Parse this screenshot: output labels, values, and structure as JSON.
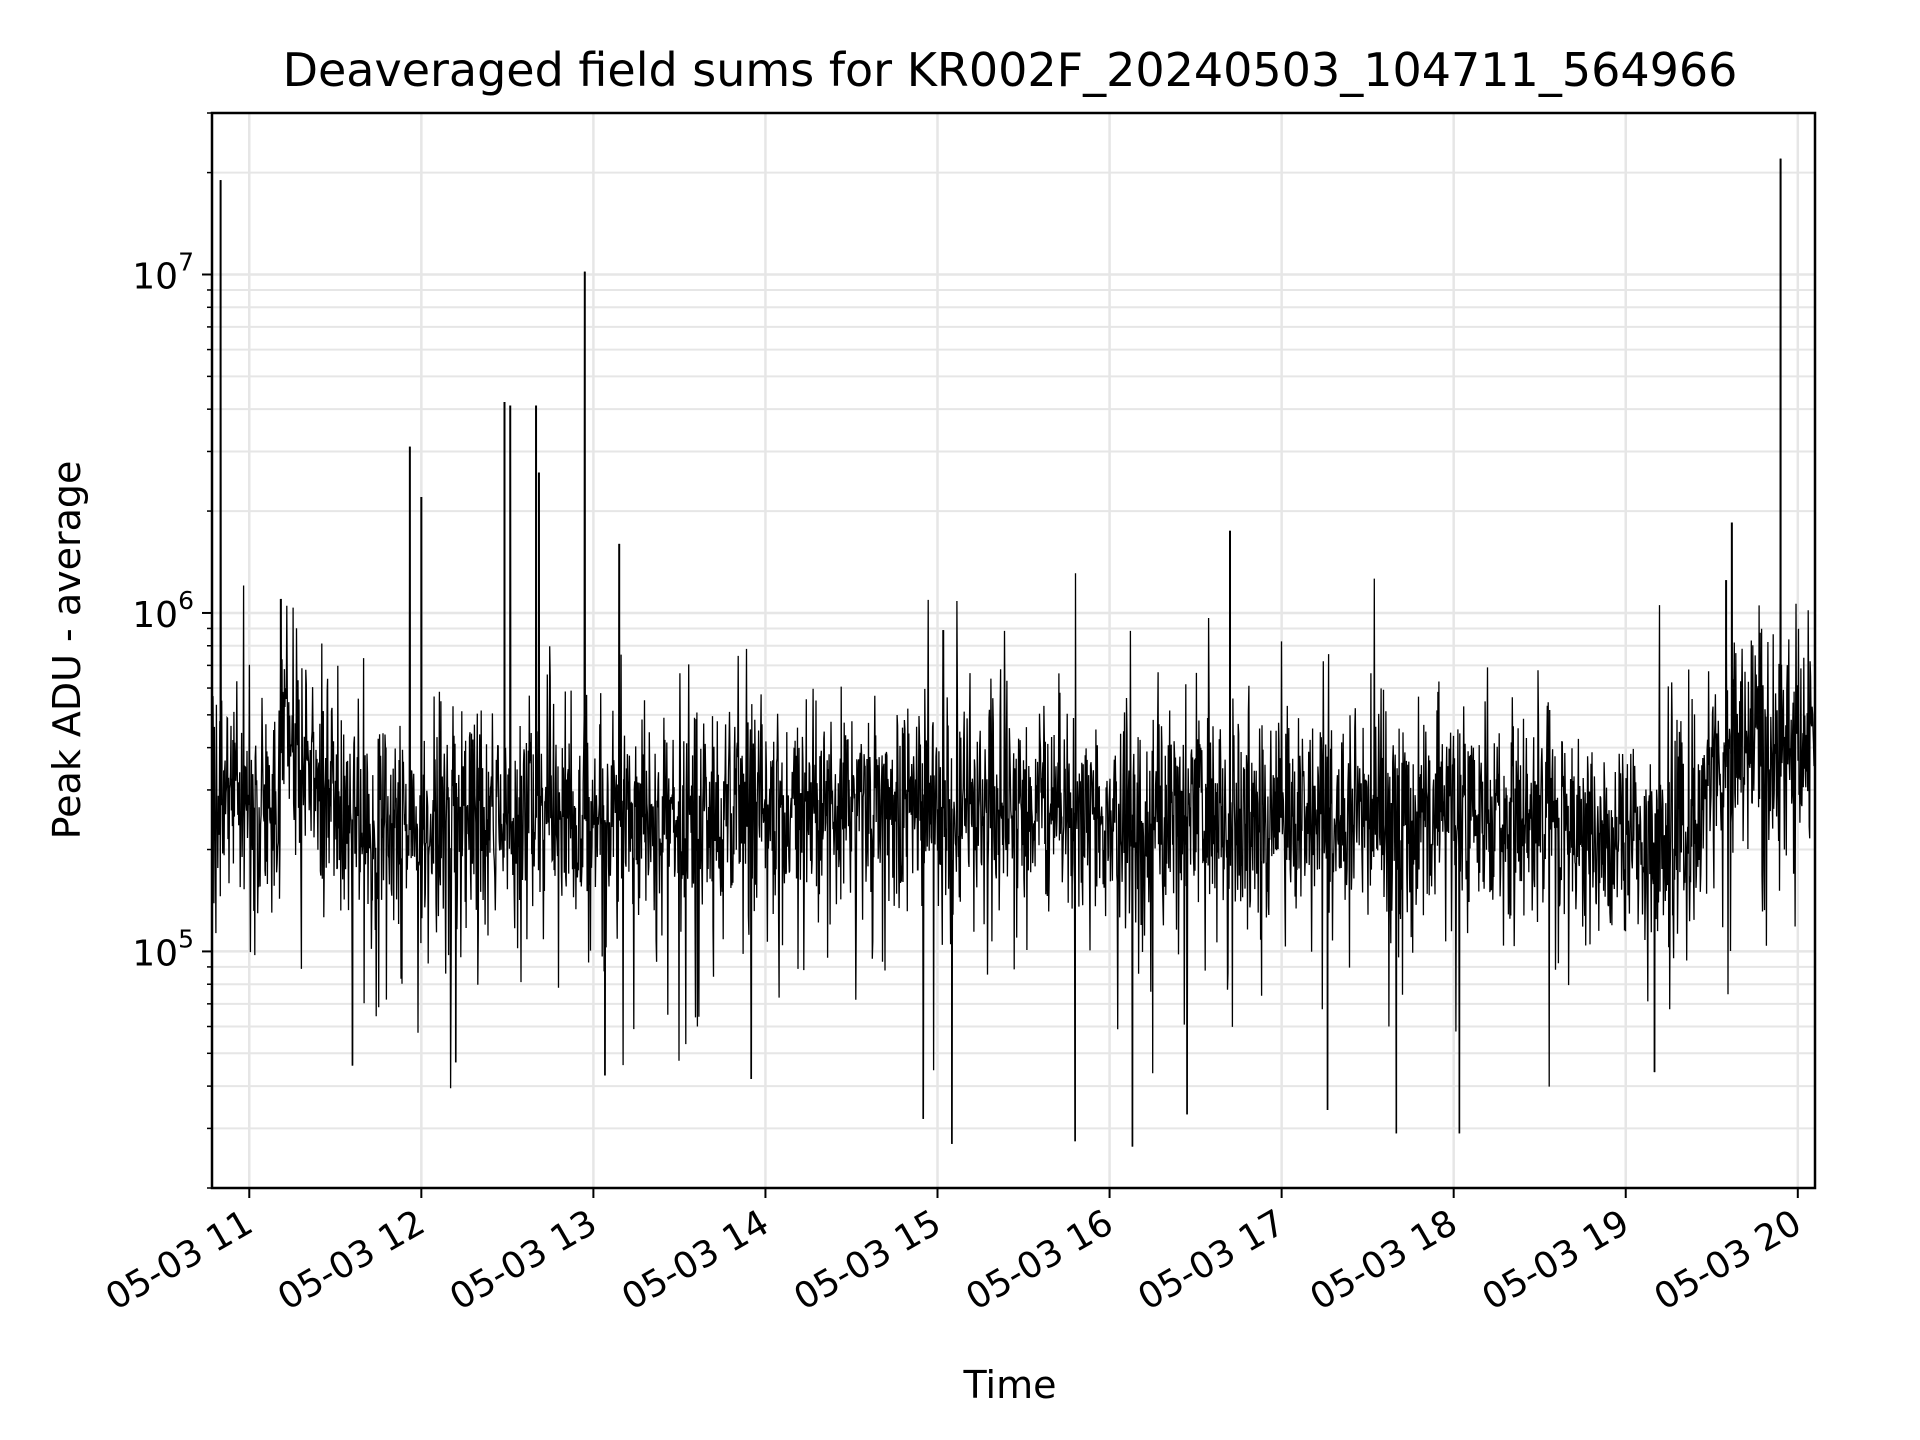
{
  "chart_data": {
    "type": "line",
    "title": "Deaveraged field sums for KR002F_20240503_104711_564966",
    "xlabel": "Time",
    "ylabel": "Peak ADU - average",
    "yscale": "log",
    "grid": true,
    "line_color": "#000000",
    "grid_color": "#e6e6e6",
    "xlim": [
      "2024-05-03 10:47",
      "2024-05-03 20:06"
    ],
    "ylim": [
      20000,
      30000000
    ],
    "x_ticks": [
      "05-03 11",
      "05-03 12",
      "05-03 13",
      "05-03 14",
      "05-03 15",
      "05-03 16",
      "05-03 17",
      "05-03 18",
      "05-03 19",
      "05-03 20"
    ],
    "y_ticks": [
      {
        "base": "10",
        "exp": "5",
        "value": 100000
      },
      {
        "base": "10",
        "exp": "6",
        "value": 1000000
      },
      {
        "base": "10",
        "exp": "7",
        "value": 10000000
      }
    ],
    "baseline": [
      {
        "x": "2024-05-03 10:47",
        "y": 420000
      },
      {
        "x": "2024-05-03 11:00",
        "y": 250000
      },
      {
        "x": "2024-05-03 11:10",
        "y": 270000
      },
      {
        "x": "2024-05-03 11:12",
        "y": 550000
      },
      {
        "x": "2024-05-03 11:18",
        "y": 330000
      },
      {
        "x": "2024-05-03 11:40",
        "y": 230000
      },
      {
        "x": "2024-05-03 12:30",
        "y": 250000
      },
      {
        "x": "2024-05-03 13:30",
        "y": 240000
      },
      {
        "x": "2024-05-03 14:30",
        "y": 270000
      },
      {
        "x": "2024-05-03 15:30",
        "y": 260000
      },
      {
        "x": "2024-05-03 16:30",
        "y": 250000
      },
      {
        "x": "2024-05-03 17:30",
        "y": 250000
      },
      {
        "x": "2024-05-03 18:30",
        "y": 240000
      },
      {
        "x": "2024-05-03 19:20",
        "y": 200000
      },
      {
        "x": "2024-05-03 19:35",
        "y": 380000
      },
      {
        "x": "2024-05-03 20:06",
        "y": 440000
      }
    ],
    "spikes": [
      {
        "x": "2024-05-03 10:50",
        "y": 19000000
      },
      {
        "x": "2024-05-03 11:11",
        "y": 1100000
      },
      {
        "x": "2024-05-03 11:56",
        "y": 3100000
      },
      {
        "x": "2024-05-03 12:00",
        "y": 2200000
      },
      {
        "x": "2024-05-03 12:29",
        "y": 4200000
      },
      {
        "x": "2024-05-03 12:31",
        "y": 4100000
      },
      {
        "x": "2024-05-03 12:40",
        "y": 4100000
      },
      {
        "x": "2024-05-03 12:41",
        "y": 2600000
      },
      {
        "x": "2024-05-03 12:57",
        "y": 10200000
      },
      {
        "x": "2024-05-03 13:09",
        "y": 1600000
      },
      {
        "x": "2024-05-03 15:02",
        "y": 890000
      },
      {
        "x": "2024-05-03 16:42",
        "y": 1750000
      },
      {
        "x": "2024-05-03 19:35",
        "y": 1250000
      },
      {
        "x": "2024-05-03 19:37",
        "y": 1850000
      },
      {
        "x": "2024-05-03 19:54",
        "y": 22000000
      }
    ],
    "dips": [
      {
        "x": "2024-05-03 11:36",
        "y": 46000
      },
      {
        "x": "2024-05-03 12:12",
        "y": 47000
      },
      {
        "x": "2024-05-03 13:04",
        "y": 43000
      },
      {
        "x": "2024-05-03 13:55",
        "y": 42000
      },
      {
        "x": "2024-05-03 14:55",
        "y": 32000
      },
      {
        "x": "2024-05-03 15:05",
        "y": 27000
      },
      {
        "x": "2024-05-03 15:48",
        "y": 27500
      },
      {
        "x": "2024-05-03 16:08",
        "y": 26500
      },
      {
        "x": "2024-05-03 16:27",
        "y": 33000
      },
      {
        "x": "2024-05-03 17:16",
        "y": 34000
      },
      {
        "x": "2024-05-03 17:40",
        "y": 29000
      },
      {
        "x": "2024-05-03 18:02",
        "y": 29000
      },
      {
        "x": "2024-05-03 19:10",
        "y": 44000
      }
    ]
  }
}
